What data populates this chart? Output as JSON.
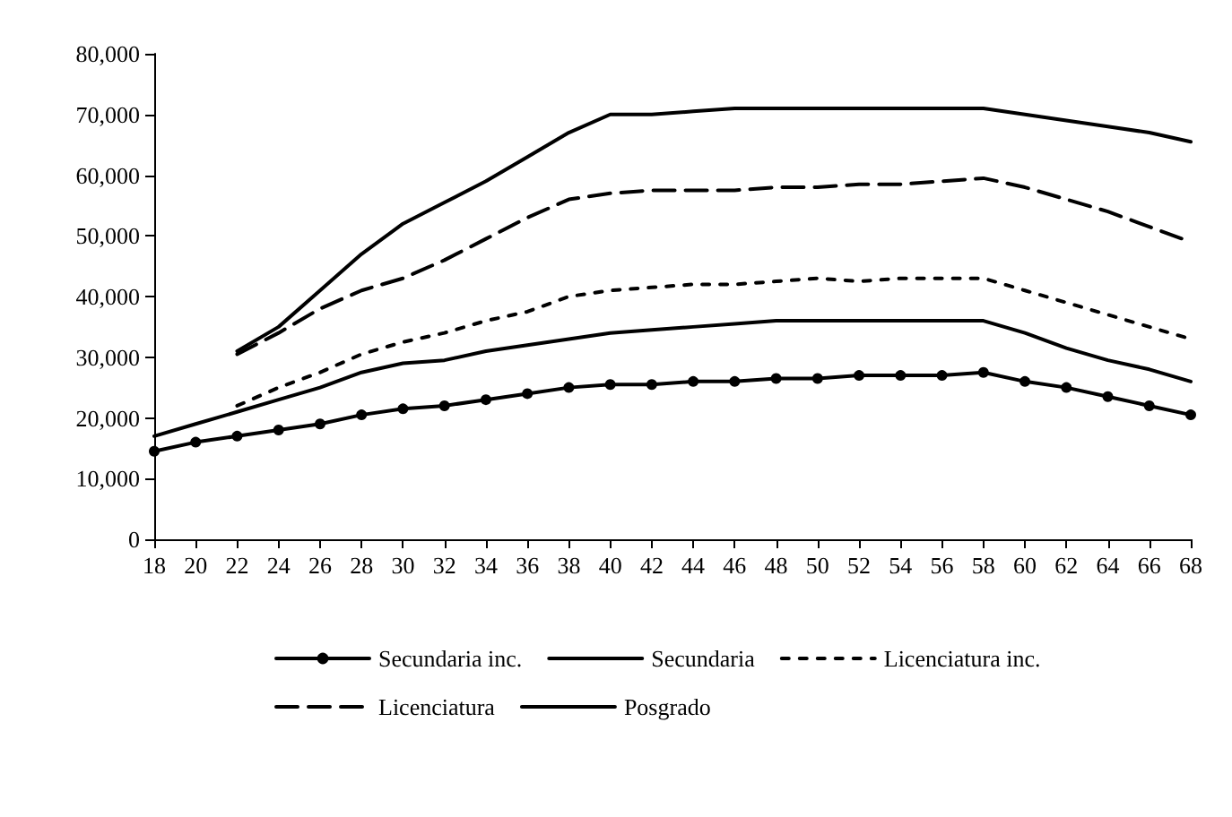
{
  "chart_data": {
    "type": "line",
    "x": [
      18,
      20,
      22,
      24,
      26,
      28,
      30,
      32,
      34,
      36,
      38,
      40,
      42,
      44,
      46,
      48,
      50,
      52,
      54,
      56,
      58,
      60,
      62,
      64,
      66,
      68
    ],
    "series": [
      {
        "name": "Secundaria inc.",
        "color": "#000000",
        "marker": "circle",
        "line_style": "solid",
        "values": [
          14500,
          16000,
          17000,
          18000,
          19000,
          20500,
          21500,
          22000,
          23000,
          24000,
          25000,
          25500,
          25500,
          26000,
          26000,
          26500,
          26500,
          27000,
          27000,
          27000,
          27500,
          26000,
          25000,
          23500,
          22000,
          20500
        ]
      },
      {
        "name": "Secundaria",
        "color": "#000000",
        "marker": "none",
        "line_style": "solid",
        "values": [
          17000,
          19000,
          21000,
          23000,
          25000,
          27500,
          29000,
          29500,
          31000,
          32000,
          33000,
          34000,
          34500,
          35000,
          35500,
          36000,
          36000,
          36000,
          36000,
          36000,
          36000,
          34000,
          31500,
          29500,
          28000,
          26000
        ]
      },
      {
        "name": "Licenciatura inc.",
        "color": "#000000",
        "marker": "none",
        "line_style": "dotted",
        "values": [
          null,
          null,
          22000,
          25000,
          27500,
          30500,
          32500,
          34000,
          36000,
          37500,
          40000,
          41000,
          41500,
          42000,
          42000,
          42500,
          43000,
          42500,
          43000,
          43000,
          43000,
          41000,
          39000,
          37000,
          35000,
          33000
        ]
      },
      {
        "name": "Licenciatura",
        "color": "#000000",
        "marker": "none",
        "line_style": "dashed",
        "values": [
          null,
          null,
          30500,
          34000,
          38000,
          41000,
          43000,
          46000,
          49500,
          53000,
          56000,
          57000,
          57500,
          57500,
          57500,
          58000,
          58000,
          58500,
          58500,
          59000,
          59500,
          58000,
          56000,
          54000,
          51500,
          49000
        ]
      },
      {
        "name": "Posgrado",
        "color": "#000000",
        "marker": "none",
        "line_style": "solid",
        "values": [
          null,
          null,
          31000,
          35000,
          41000,
          47000,
          52000,
          55500,
          59000,
          63000,
          67000,
          70000,
          70000,
          70500,
          71000,
          71000,
          71000,
          71000,
          71000,
          71000,
          71000,
          70000,
          69000,
          68000,
          67000,
          65500
        ]
      }
    ],
    "xlim": [
      18,
      68
    ],
    "xticks": [
      18,
      20,
      22,
      24,
      26,
      28,
      30,
      32,
      34,
      36,
      38,
      40,
      42,
      44,
      46,
      48,
      50,
      52,
      54,
      56,
      58,
      60,
      62,
      64,
      66,
      68
    ],
    "ylim": [
      0,
      80000
    ],
    "yticks": [
      {
        "value": 0,
        "label": "0"
      },
      {
        "value": 10000,
        "label": "10,000"
      },
      {
        "value": 20000,
        "label": "20,000"
      },
      {
        "value": 30000,
        "label": "30,000"
      },
      {
        "value": 40000,
        "label": "40,000"
      },
      {
        "value": 50000,
        "label": "50,000"
      },
      {
        "value": 60000,
        "label": "60,000"
      },
      {
        "value": 70000,
        "label": "70,000"
      },
      {
        "value": 80000,
        "label": "80,000"
      }
    ],
    "grid": false,
    "legend": "bottom"
  }
}
